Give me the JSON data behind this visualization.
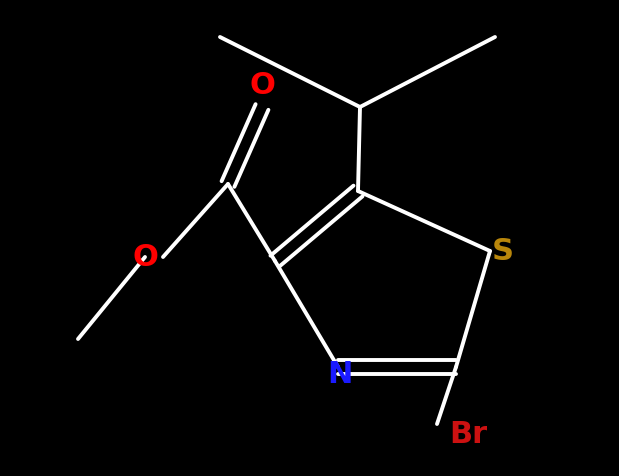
{
  "bg_color": "#000000",
  "bond_color": "#ffffff",
  "bw": 2.8,
  "dbl_sep": 0.07,
  "atom_colors": {
    "O": "#ff0000",
    "N": "#1a1aff",
    "S": "#b8860b",
    "Br": "#cc1111",
    "C": "#ffffff"
  },
  "figsize": [
    6.19,
    4.77
  ],
  "dpi": 100,
  "xlim": [
    0,
    6.19
  ],
  "ylim": [
    0,
    4.77
  ],
  "font_size": 0.38
}
